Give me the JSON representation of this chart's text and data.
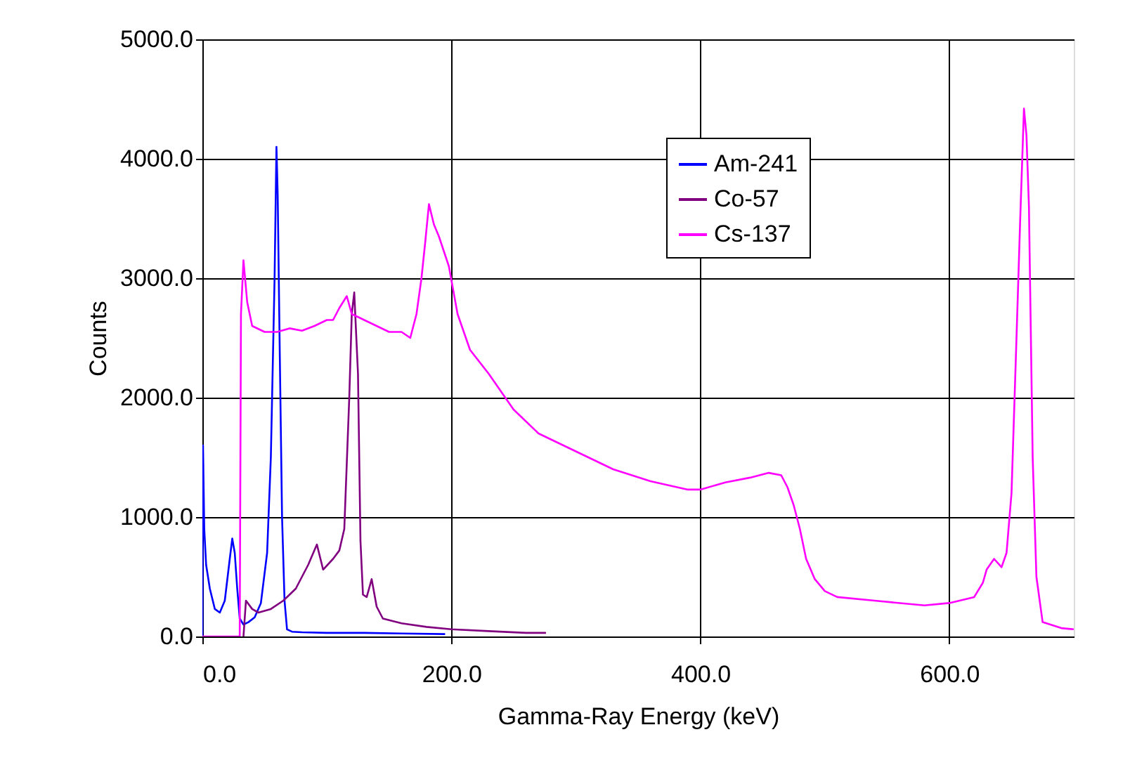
{
  "chart_data": {
    "type": "line",
    "xlabel": "Gamma-Ray Energy (keV)",
    "ylabel": "Counts",
    "xlim": [
      0,
      700
    ],
    "ylim": [
      0,
      5000
    ],
    "xticks": [
      {
        "value": 0,
        "label": "0.0"
      },
      {
        "value": 200,
        "label": "200.0"
      },
      {
        "value": 400,
        "label": "400.0"
      },
      {
        "value": 600,
        "label": "600.0"
      }
    ],
    "yticks": [
      {
        "value": 0,
        "label": "0.0"
      },
      {
        "value": 1000,
        "label": "1000.0"
      },
      {
        "value": 2000,
        "label": "2000.0"
      },
      {
        "value": 3000,
        "label": "3000.0"
      },
      {
        "value": 4000,
        "label": "4000.0"
      },
      {
        "value": 5000,
        "label": "5000.0"
      }
    ],
    "grid": true,
    "legend": "top right",
    "marker": "none",
    "line_style": "solid",
    "series": [
      {
        "name": "Am-241",
        "color": "#0000ff",
        "x": [
          0,
          0.5,
          1.5,
          3,
          6,
          10,
          14,
          18,
          22,
          24,
          26,
          28,
          30,
          33,
          37,
          42,
          47,
          52,
          55,
          58,
          59.5,
          60.5,
          62,
          64,
          66,
          68,
          72,
          80,
          100,
          130,
          160,
          195
        ],
        "values": [
          0,
          1600,
          900,
          600,
          400,
          230,
          200,
          300,
          650,
          820,
          700,
          400,
          150,
          100,
          120,
          160,
          280,
          700,
          1500,
          3000,
          4100,
          3700,
          2500,
          1000,
          300,
          60,
          40,
          35,
          30,
          30,
          25,
          20
        ]
      },
      {
        "name": "Co-57",
        "color": "#800080",
        "x": [
          33,
          35,
          40,
          45,
          55,
          65,
          75,
          85,
          92,
          97,
          105,
          110,
          114,
          118,
          120,
          122,
          125,
          127,
          129,
          132,
          136,
          140,
          145,
          160,
          180,
          200,
          230,
          260,
          276
        ],
        "values": [
          0,
          300,
          230,
          200,
          230,
          300,
          400,
          600,
          770,
          560,
          650,
          720,
          900,
          2000,
          2700,
          2880,
          2200,
          800,
          350,
          330,
          480,
          250,
          150,
          110,
          80,
          60,
          45,
          30,
          30
        ]
      },
      {
        "name": "Cs-137",
        "color": "#ff00ff",
        "x": [
          0,
          30,
          31,
          33,
          36,
          40,
          50,
          60,
          70,
          80,
          90,
          100,
          105,
          110,
          116,
          120,
          130,
          140,
          150,
          160,
          167,
          172,
          176,
          179,
          182,
          186,
          190,
          198,
          205,
          215,
          230,
          250,
          270,
          300,
          330,
          360,
          390,
          400,
          420,
          440,
          455,
          465,
          470,
          475,
          480,
          485,
          492,
          500,
          510,
          540,
          580,
          600,
          620,
          627,
          630,
          636,
          642,
          646,
          650,
          654,
          657,
          660,
          662,
          664,
          667,
          670,
          675,
          690,
          700
        ],
        "values": [
          0,
          0,
          2700,
          3150,
          2800,
          2600,
          2550,
          2550,
          2580,
          2560,
          2600,
          2650,
          2650,
          2750,
          2850,
          2700,
          2650,
          2600,
          2550,
          2550,
          2500,
          2700,
          3000,
          3300,
          3620,
          3450,
          3350,
          3100,
          2700,
          2400,
          2200,
          1900,
          1700,
          1550,
          1400,
          1300,
          1230,
          1230,
          1290,
          1330,
          1370,
          1350,
          1250,
          1100,
          900,
          650,
          480,
          380,
          330,
          300,
          260,
          280,
          330,
          450,
          560,
          650,
          580,
          700,
          1200,
          2500,
          3500,
          4420,
          4200,
          3600,
          1500,
          500,
          120,
          70,
          60
        ]
      }
    ]
  }
}
